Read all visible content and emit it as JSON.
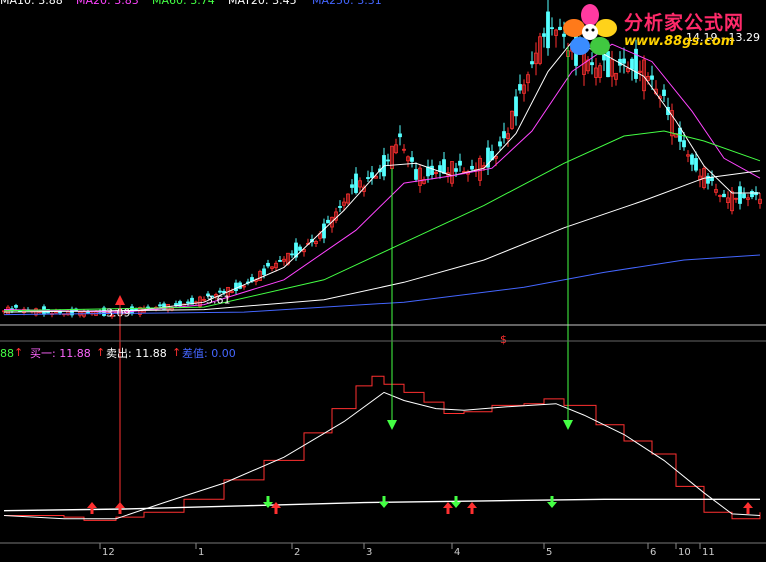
{
  "top_legend": [
    {
      "text": "MA10: 3.88",
      "color": "#ffffff"
    },
    {
      "text": "MA20: 3.83",
      "color": "#ff44ff"
    },
    {
      "text": "MA60: 3.74",
      "color": "#44ff44"
    },
    {
      "text": "MAT20: 3.45",
      "color": "#ffffff"
    },
    {
      "text": "MA250: 3.31",
      "color": "#4466ff"
    }
  ],
  "indicator_legend": [
    {
      "text": "88",
      "color": "#44ff44"
    },
    {
      "text": "买一: 11.88",
      "color": "#ff66ff"
    },
    {
      "text": "卖出: 11.88",
      "color": "#ffffff"
    },
    {
      "text": "差值: 0.00",
      "color": "#4466ff"
    }
  ],
  "logo": {
    "brand": "分析家公式网",
    "url": "www.88gs.com"
  },
  "chart_data": [
    {
      "type": "candlestick",
      "title": "",
      "price_ylim": [
        2.7,
        15.2
      ],
      "annotations": [
        {
          "text": "3.09",
          "x": 25,
          "y": 3.09
        },
        {
          "text": "3.61",
          "x": 50,
          "y": 3.61
        },
        {
          "text": "14.19 - 13.29",
          "x": 170,
          "y": 14.19
        },
        {
          "text": "$",
          "x": 124,
          "y": 3.6
        }
      ],
      "x_ticks": [
        {
          "label": "12",
          "x": 24
        },
        {
          "label": "1",
          "x": 48
        },
        {
          "label": "2",
          "x": 72
        },
        {
          "label": "3",
          "x": 90
        },
        {
          "label": "4",
          "x": 112
        },
        {
          "label": "5",
          "x": 135
        },
        {
          "label": "6",
          "x": 161
        },
        {
          "label": "10",
          "x": 168
        },
        {
          "label": "11",
          "x": 174
        }
      ],
      "price_anchors": [
        {
          "x": 0,
          "y": 3.2
        },
        {
          "x": 20,
          "y": 3.05
        },
        {
          "x": 30,
          "y": 3.1
        },
        {
          "x": 40,
          "y": 3.3
        },
        {
          "x": 50,
          "y": 3.6
        },
        {
          "x": 60,
          "y": 4.2
        },
        {
          "x": 70,
          "y": 5.2
        },
        {
          "x": 80,
          "y": 6.3
        },
        {
          "x": 88,
          "y": 8.2
        },
        {
          "x": 95,
          "y": 8.9
        },
        {
          "x": 99,
          "y": 10.0
        },
        {
          "x": 103,
          "y": 8.6
        },
        {
          "x": 110,
          "y": 8.9
        },
        {
          "x": 117,
          "y": 8.7
        },
        {
          "x": 123,
          "y": 9.5
        },
        {
          "x": 128,
          "y": 11.3
        },
        {
          "x": 134,
          "y": 13.8
        },
        {
          "x": 138,
          "y": 14.8
        },
        {
          "x": 142,
          "y": 13.7
        },
        {
          "x": 148,
          "y": 12.8
        },
        {
          "x": 155,
          "y": 13.2
        },
        {
          "x": 160,
          "y": 12.8
        },
        {
          "x": 165,
          "y": 11.5
        },
        {
          "x": 172,
          "y": 9.2
        },
        {
          "x": 180,
          "y": 7.6
        },
        {
          "x": 189,
          "y": 7.9
        }
      ],
      "series": [
        {
          "name": "MA10",
          "color": "#ffffff",
          "values": [
            {
              "x": 0,
              "y": 3.2
            },
            {
              "x": 30,
              "y": 3.1
            },
            {
              "x": 50,
              "y": 3.5
            },
            {
              "x": 70,
              "y": 4.9
            },
            {
              "x": 85,
              "y": 7.2
            },
            {
              "x": 95,
              "y": 9.0
            },
            {
              "x": 103,
              "y": 9.1
            },
            {
              "x": 112,
              "y": 8.6
            },
            {
              "x": 120,
              "y": 8.9
            },
            {
              "x": 128,
              "y": 10.3
            },
            {
              "x": 136,
              "y": 12.8
            },
            {
              "x": 142,
              "y": 14.0
            },
            {
              "x": 150,
              "y": 13.5
            },
            {
              "x": 160,
              "y": 12.6
            },
            {
              "x": 168,
              "y": 10.8
            },
            {
              "x": 175,
              "y": 9.0
            },
            {
              "x": 182,
              "y": 7.9
            },
            {
              "x": 189,
              "y": 7.9
            }
          ]
        },
        {
          "name": "MA20",
          "color": "#ff44ff",
          "values": [
            {
              "x": 0,
              "y": 3.2
            },
            {
              "x": 30,
              "y": 3.1
            },
            {
              "x": 50,
              "y": 3.4
            },
            {
              "x": 70,
              "y": 4.4
            },
            {
              "x": 88,
              "y": 6.4
            },
            {
              "x": 100,
              "y": 8.3
            },
            {
              "x": 112,
              "y": 8.6
            },
            {
              "x": 122,
              "y": 8.9
            },
            {
              "x": 132,
              "y": 10.4
            },
            {
              "x": 142,
              "y": 12.8
            },
            {
              "x": 152,
              "y": 13.9
            },
            {
              "x": 162,
              "y": 13.2
            },
            {
              "x": 172,
              "y": 11.2
            },
            {
              "x": 180,
              "y": 9.3
            },
            {
              "x": 189,
              "y": 8.5
            }
          ]
        },
        {
          "name": "MA60",
          "color": "#44ff44",
          "values": [
            {
              "x": 0,
              "y": 3.15
            },
            {
              "x": 50,
              "y": 3.3
            },
            {
              "x": 80,
              "y": 4.4
            },
            {
              "x": 100,
              "y": 5.9
            },
            {
              "x": 120,
              "y": 7.4
            },
            {
              "x": 140,
              "y": 9.1
            },
            {
              "x": 155,
              "y": 10.2
            },
            {
              "x": 165,
              "y": 10.4
            },
            {
              "x": 175,
              "y": 10.0
            },
            {
              "x": 189,
              "y": 9.2
            }
          ]
        },
        {
          "name": "MAT20",
          "color": "#ffffff",
          "values": [
            {
              "x": 0,
              "y": 3.1
            },
            {
              "x": 50,
              "y": 3.2
            },
            {
              "x": 80,
              "y": 3.6
            },
            {
              "x": 100,
              "y": 4.3
            },
            {
              "x": 120,
              "y": 5.2
            },
            {
              "x": 140,
              "y": 6.5
            },
            {
              "x": 160,
              "y": 7.6
            },
            {
              "x": 175,
              "y": 8.5
            },
            {
              "x": 189,
              "y": 8.8
            }
          ]
        },
        {
          "name": "MA250",
          "color": "#4466ff",
          "values": [
            {
              "x": 0,
              "y": 3.0
            },
            {
              "x": 60,
              "y": 3.1
            },
            {
              "x": 100,
              "y": 3.5
            },
            {
              "x": 130,
              "y": 4.1
            },
            {
              "x": 150,
              "y": 4.7
            },
            {
              "x": 170,
              "y": 5.2
            },
            {
              "x": 189,
              "y": 5.4
            }
          ]
        }
      ]
    },
    {
      "type": "line",
      "title": "",
      "ylim": [
        0,
        100
      ],
      "series": [
        {
          "name": "",
          "color": "#ff3030",
          "values": [
            {
              "x": 0,
              "y": 4
            },
            {
              "x": 10,
              "y": 4
            },
            {
              "x": 15,
              "y": 3
            },
            {
              "x": 20,
              "y": 1
            },
            {
              "x": 28,
              "y": 3
            },
            {
              "x": 35,
              "y": 6
            },
            {
              "x": 45,
              "y": 14
            },
            {
              "x": 55,
              "y": 26
            },
            {
              "x": 65,
              "y": 38
            },
            {
              "x": 75,
              "y": 55
            },
            {
              "x": 82,
              "y": 70
            },
            {
              "x": 88,
              "y": 84
            },
            {
              "x": 92,
              "y": 90
            },
            {
              "x": 95,
              "y": 85
            },
            {
              "x": 100,
              "y": 80
            },
            {
              "x": 105,
              "y": 74
            },
            {
              "x": 110,
              "y": 67
            },
            {
              "x": 115,
              "y": 68
            },
            {
              "x": 122,
              "y": 72
            },
            {
              "x": 130,
              "y": 73
            },
            {
              "x": 135,
              "y": 76
            },
            {
              "x": 140,
              "y": 72
            },
            {
              "x": 148,
              "y": 60
            },
            {
              "x": 155,
              "y": 50
            },
            {
              "x": 162,
              "y": 42
            },
            {
              "x": 168,
              "y": 22
            },
            {
              "x": 175,
              "y": 6
            },
            {
              "x": 182,
              "y": 2
            },
            {
              "x": 189,
              "y": 6
            }
          ]
        },
        {
          "name": "",
          "color": "#ffffff",
          "values": [
            {
              "x": 0,
              "y": 4
            },
            {
              "x": 15,
              "y": 2
            },
            {
              "x": 28,
              "y": 2
            },
            {
              "x": 40,
              "y": 12
            },
            {
              "x": 55,
              "y": 24
            },
            {
              "x": 70,
              "y": 40
            },
            {
              "x": 85,
              "y": 62
            },
            {
              "x": 95,
              "y": 80
            },
            {
              "x": 100,
              "y": 75
            },
            {
              "x": 108,
              "y": 70
            },
            {
              "x": 115,
              "y": 69
            },
            {
              "x": 125,
              "y": 71
            },
            {
              "x": 138,
              "y": 73
            },
            {
              "x": 145,
              "y": 66
            },
            {
              "x": 155,
              "y": 54
            },
            {
              "x": 165,
              "y": 38
            },
            {
              "x": 175,
              "y": 18
            },
            {
              "x": 182,
              "y": 5
            },
            {
              "x": 189,
              "y": 4
            }
          ]
        },
        {
          "name": "",
          "color": "#ffffff",
          "values": [
            {
              "x": 0,
              "y": 7
            },
            {
              "x": 30,
              "y": 8
            },
            {
              "x": 60,
              "y": 10
            },
            {
              "x": 90,
              "y": 12
            },
            {
              "x": 120,
              "y": 13
            },
            {
              "x": 150,
              "y": 14
            },
            {
              "x": 189,
              "y": 14
            }
          ]
        }
      ],
      "signals": [
        {
          "type": "buy",
          "x": 22,
          "y": 4
        },
        {
          "type": "buy",
          "x": 29,
          "y": 4
        },
        {
          "type": "sell",
          "x": 66,
          "y": 4
        },
        {
          "type": "buy",
          "x": 68,
          "y": 4
        },
        {
          "type": "sell",
          "x": 95,
          "y": 4
        },
        {
          "type": "buy",
          "x": 111,
          "y": 4
        },
        {
          "type": "sell",
          "x": 113,
          "y": 4
        },
        {
          "type": "buy",
          "x": 117,
          "y": 4
        },
        {
          "type": "sell",
          "x": 137,
          "y": 4
        },
        {
          "type": "buy",
          "x": 186,
          "y": 4
        }
      ]
    }
  ]
}
